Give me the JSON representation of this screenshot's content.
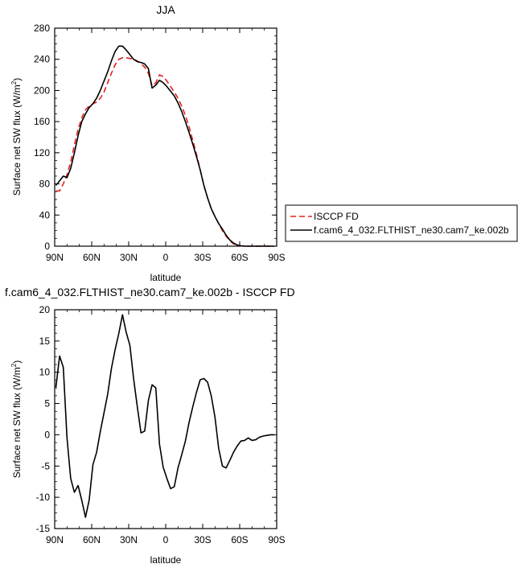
{
  "chart_data": [
    {
      "type": "line",
      "title": "JJA",
      "xlabel": "latitude",
      "ylabel": "Surface net SW flux",
      "ylabel_units": "(W/m",
      "ylabel_sup": "2",
      "ylabel_close": ")",
      "xlim": [
        90,
        -90
      ],
      "ylim": [
        0,
        280
      ],
      "xticks": [
        90,
        60,
        30,
        0,
        -30,
        -60,
        -90
      ],
      "xtick_labels": [
        "90N",
        "60N",
        "30N",
        "0",
        "30S",
        "60S",
        "90S"
      ],
      "yticks": [
        0,
        40,
        80,
        120,
        160,
        200,
        240,
        280
      ],
      "ytick_labels": [
        "0",
        "40",
        "80",
        "120",
        "160",
        "200",
        "240",
        "280"
      ],
      "grid": false,
      "legend_placement": "right",
      "series": [
        {
          "name": "ISCCP FD",
          "color": "#e0221b",
          "dash": "dashed",
          "x": [
            89,
            86,
            83,
            80,
            77,
            74,
            71,
            68,
            65,
            62,
            59,
            56,
            53,
            50,
            47,
            44,
            41,
            38,
            35,
            32,
            29,
            26,
            23,
            20,
            17,
            14,
            11,
            8,
            5,
            2,
            -1,
            -4,
            -7,
            -10,
            -13,
            -16,
            -19,
            -22,
            -25,
            -28,
            -31,
            -34,
            -37,
            -40,
            -43,
            -46,
            -49,
            -52,
            -55,
            -58,
            -61,
            -64,
            -67,
            -70,
            -73,
            -76,
            -79,
            -82,
            -85,
            -88
          ],
          "y": [
            71,
            71,
            80,
            92,
            108,
            130,
            150,
            165,
            175,
            180,
            183,
            185,
            190,
            198,
            210,
            222,
            233,
            240,
            242,
            242,
            241,
            240,
            238,
            234,
            230,
            222,
            206,
            210,
            220,
            218,
            212,
            205,
            198,
            190,
            180,
            168,
            153,
            136,
            118,
            98,
            78,
            62,
            48,
            38,
            29,
            20,
            13,
            7,
            3,
            1.2,
            0.4,
            0.1,
            0,
            0,
            0,
            0,
            0,
            0,
            0,
            0
          ]
        },
        {
          "name": "f.cam6_4_032.FLTHIST_ne30.cam7_ke.002b",
          "color": "#000000",
          "dash": "solid",
          "x": [
            89,
            86,
            83,
            80,
            77,
            74,
            71,
            68,
            65,
            62,
            59,
            56,
            53,
            50,
            47,
            44,
            41,
            38,
            35,
            32,
            29,
            26,
            23,
            20,
            17,
            14,
            11,
            8,
            5,
            2,
            -1,
            -4,
            -7,
            -10,
            -13,
            -16,
            -19,
            -22,
            -25,
            -28,
            -31,
            -34,
            -37,
            -40,
            -43,
            -46,
            -49,
            -52,
            -55,
            -58,
            -61,
            -64,
            -67,
            -70,
            -73,
            -76,
            -79,
            -82,
            -85,
            -88
          ],
          "y": [
            78,
            84,
            90,
            88,
            100,
            120,
            142,
            160,
            170,
            178,
            183,
            190,
            200,
            212,
            224,
            238,
            250,
            257,
            257,
            252,
            246,
            240,
            237,
            236,
            234,
            228,
            203,
            207,
            213,
            210,
            205,
            199,
            193,
            184,
            173,
            160,
            146,
            131,
            115,
            98,
            78,
            62,
            48,
            38,
            29,
            22,
            14,
            8,
            4,
            1.5,
            0.5,
            0.1,
            0,
            0,
            0,
            0,
            0,
            0,
            0,
            0
          ]
        }
      ]
    },
    {
      "type": "line",
      "title": "f.cam6_4_032.FLTHIST_ne30.cam7_ke.002b - ISCCP FD",
      "xlabel": "latitude",
      "ylabel": "Surface net SW flux",
      "ylabel_units": "(W/m",
      "ylabel_sup": "2",
      "ylabel_close": ")",
      "xlim": [
        90,
        -90
      ],
      "ylim": [
        -15,
        20
      ],
      "xticks": [
        90,
        60,
        30,
        0,
        -30,
        -60,
        -90
      ],
      "xtick_labels": [
        "90N",
        "60N",
        "30N",
        "0",
        "30S",
        "60S",
        "90S"
      ],
      "yticks": [
        -15,
        -10,
        -5,
        0,
        5,
        10,
        15,
        20
      ],
      "ytick_labels": [
        "-15",
        "-10",
        "-5",
        "0",
        "5",
        "10",
        "15",
        "20"
      ],
      "grid": false,
      "series": [
        {
          "color": "#000000",
          "dash": "solid",
          "x": [
            89,
            86,
            83,
            80,
            77,
            74,
            71,
            68,
            65,
            62,
            59,
            56,
            53,
            50,
            47,
            44,
            41,
            38,
            35,
            32,
            29,
            26,
            23,
            20,
            17,
            14,
            11,
            8,
            5,
            2,
            -1,
            -4,
            -7,
            -10,
            -13,
            -16,
            -19,
            -22,
            -25,
            -28,
            -31,
            -34,
            -37,
            -40,
            -43,
            -46,
            -49,
            -52,
            -55,
            -58,
            -61,
            -64,
            -67,
            -70,
            -73,
            -76,
            -79,
            -82,
            -85,
            -88
          ],
          "y": [
            7.6,
            12.6,
            10.8,
            -0.5,
            -7.0,
            -9.2,
            -8.1,
            -10.5,
            -13.2,
            -10.4,
            -4.8,
            -2.8,
            0.5,
            3.5,
            6.5,
            10.6,
            13.6,
            16.2,
            19.2,
            16.4,
            14.3,
            9.0,
            4.5,
            0.3,
            0.6,
            5.5,
            8.0,
            7.5,
            -1.5,
            -5.2,
            -7.0,
            -8.6,
            -8.3,
            -5.3,
            -3.2,
            -1.0,
            2.0,
            4.5,
            6.8,
            8.8,
            9.0,
            8.4,
            6.2,
            2.8,
            -2.2,
            -5.0,
            -5.3,
            -4.1,
            -2.8,
            -1.8,
            -1.0,
            -0.9,
            -0.5,
            -0.9,
            -0.8,
            -0.4,
            -0.2,
            -0.1,
            0,
            0
          ]
        }
      ]
    }
  ]
}
